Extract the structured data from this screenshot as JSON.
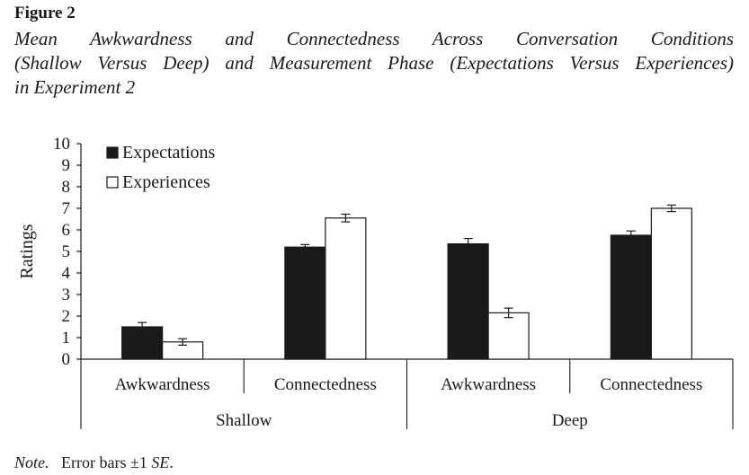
{
  "figure": {
    "label": "Figure 2",
    "title_lines": [
      "Mean Awkwardness and Connectedness Across Conversation Conditions",
      "(Shallow Versus Deep) and Measurement Phase (Expectations Versus Experiences)",
      "in Experiment 2"
    ],
    "note_prefix": "Note.",
    "note_text": "Error bars ±1",
    "note_suffix": "SE",
    "note_end": "."
  },
  "chart_data": {
    "type": "bar",
    "ylabel": "Ratings",
    "ylim": [
      0,
      10
    ],
    "yticks": [
      0,
      1,
      2,
      3,
      4,
      5,
      6,
      7,
      8,
      9,
      10
    ],
    "groups": [
      "Shallow",
      "Deep"
    ],
    "categories": [
      "Awkwardness",
      "Connectedness",
      "Awkwardness",
      "Connectedness"
    ],
    "category_group": [
      0,
      0,
      1,
      1
    ],
    "series": [
      {
        "name": "Expectations",
        "color": "#1a1a1a",
        "values": [
          1.5,
          5.2,
          5.35,
          5.75
        ],
        "errors": [
          0.2,
          0.12,
          0.25,
          0.2
        ]
      },
      {
        "name": "Experiences",
        "color": "#ffffff",
        "values": [
          0.8,
          6.55,
          2.15,
          7.0
        ],
        "errors": [
          0.15,
          0.18,
          0.22,
          0.15
        ]
      }
    ],
    "legend_position": "top-left",
    "grid": false
  }
}
